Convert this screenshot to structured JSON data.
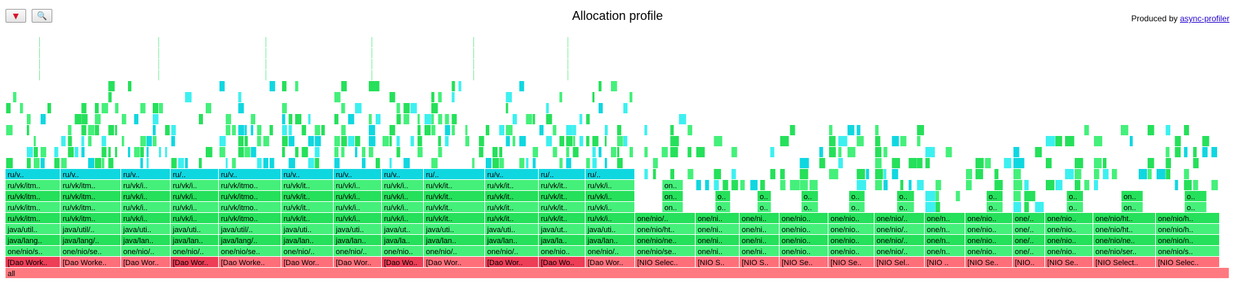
{
  "header": {
    "title": "Allocation profile",
    "produced_label": "Produced by",
    "produced_link": "async-profiler",
    "reverse_icon": "triangle-down-icon",
    "search_icon": "magnifier-icon"
  },
  "colors": {
    "root": "#ff7a80",
    "thread": "#ff6f7a",
    "thread_alt": "#ee3d56",
    "java": "#25e05a",
    "java_alt": "#44f07a",
    "inlined": "#0fd7e0",
    "inlined_alt": "#3df0f0"
  },
  "flame": {
    "root_label": "all",
    "threads": [
      {
        "label": "[Dao Work..",
        "alt": true,
        "frames": [
          "one/nio/s..",
          "java/lang..",
          "java/util..",
          "ru/vk/itm..",
          "ru/vk/itm..",
          "ru/vk/itm..",
          "ru/vk/itm..",
          "ru/v.."
        ]
      },
      {
        "label": "[Dao Worke..",
        "alt": false,
        "frames": [
          "one/nio/se..",
          "java/lang/..",
          "java/util/..",
          "ru/vk/itm..",
          "ru/vk/itm..",
          "ru/vk/itm..",
          "ru/vk/itm..",
          "ru/v.."
        ]
      },
      {
        "label": "[Dao Wor..",
        "alt": false,
        "frames": [
          "one/nio/..",
          "java/lan..",
          "java/uti..",
          "ru/vk/i..",
          "ru/vk/i..",
          "ru/vk/i..",
          "ru/vk/i..",
          "ru/v.."
        ]
      },
      {
        "label": "[Dao Wor..",
        "alt": true,
        "frames": [
          "one/nio/..",
          "java/lan..",
          "java/uti..",
          "ru/vk/i..",
          "ru/vk/i..",
          "ru/vk/i..",
          "ru/vk/i..",
          "ru/.."
        ]
      },
      {
        "label": "[Dao Worke..",
        "alt": false,
        "frames": [
          "one/nio/se..",
          "java/lang/..",
          "java/util/..",
          "ru/vk/itmo..",
          "ru/vk/itmo..",
          "ru/vk/itmo..",
          "ru/vk/itmo..",
          "ru/v.."
        ]
      },
      {
        "label": "[Dao Wor..",
        "alt": false,
        "frames": [
          "one/nio/..",
          "java/lan..",
          "java/uti..",
          "ru/vk/it..",
          "ru/vk/it..",
          "ru/vk/it..",
          "ru/vk/it..",
          "ru/v.."
        ]
      },
      {
        "label": "[Dao Wor..",
        "alt": false,
        "frames": [
          "one/nio/..",
          "java/lan..",
          "java/uti..",
          "ru/vk/i..",
          "ru/vk/i..",
          "ru/vk/i..",
          "ru/vk/i..",
          "ru/v.."
        ]
      },
      {
        "label": "[Dao Wor..",
        "alt": true,
        "frames": [
          "one/nio/..",
          "java/lan..",
          "java/uti..",
          "ru/vk/it..",
          "ru/vk/it..",
          "ru/vk/it..",
          "ru/vk/it..",
          "ru/v.."
        ]
      },
      {
        "label": "[Dao Wor..",
        "alt": false,
        "frames": [
          "one/nio/..",
          "java/lan..",
          "java/uti..",
          "ru/vk/it..",
          "ru/vk/it..",
          "ru/vk/it..",
          "ru/vk/it..",
          "ru/.."
        ]
      },
      {
        "label": "[Dao Wor..",
        "alt": true,
        "frames": [
          "one/nio/..",
          "java/lan..",
          "java/uti..",
          "ru/vk/it..",
          "ru/vk/it..",
          "ru/vk/it..",
          "ru/vk/it..",
          "ru/v.."
        ]
      },
      {
        "label": "[Dao Wo..",
        "alt": true,
        "frames": [
          "one/nio..",
          "java/la..",
          "java/ut..",
          "ru/vk/it..",
          "ru/vk/it..",
          "ru/vk/it..",
          "ru/vk/it..",
          "ru/.."
        ]
      },
      {
        "label": "[Dao Wor..",
        "alt": false,
        "frames": [
          "one/nio/..",
          "java/lan..",
          "java/uti..",
          "ru/vk/i..",
          "ru/vk/i..",
          "ru/vk/i..",
          "ru/vk/i..",
          "ru/.."
        ]
      },
      {
        "label": "[NIO Selec..",
        "alt": false,
        "frames": [
          "one/nio/se..",
          "one/nio/ne..",
          "one/nio/ht..",
          "one/nio/..",
          "on..",
          "one..",
          "one.."
        ]
      },
      {
        "label": "[NIO S..",
        "alt": false,
        "frames": [
          "one/ni..",
          "one/ni..",
          "one/ni..",
          "one/ni..",
          "o..",
          "o.."
        ]
      },
      {
        "label": "[NIO S..",
        "alt": false,
        "frames": [
          "one/ni..",
          "one/ni..",
          "one/ni..",
          "one/ni..",
          "o..",
          "o.."
        ]
      },
      {
        "label": "[NIO Se..",
        "alt": false,
        "frames": [
          "one/nio..",
          "one/nio..",
          "one/nio..",
          "one/nio..",
          "o..",
          "o.."
        ]
      },
      {
        "label": "[NIO Se..",
        "alt": false,
        "frames": [
          "one/nio..",
          "one/nio..",
          "one/nio..",
          "one/nio..",
          "o..",
          "o.."
        ]
      },
      {
        "label": "[NIO Sel..",
        "alt": false,
        "frames": [
          "one/nio/..",
          "one/nio/..",
          "one/nio/..",
          "one/nio/..",
          "o..",
          "o.."
        ]
      },
      {
        "label": "[NIO ..",
        "alt": false,
        "frames": [
          "one/n..",
          "one/n..",
          "one/n..",
          "one/n.."
        ]
      },
      {
        "label": "[NIO Se..",
        "alt": false,
        "frames": [
          "one/nio..",
          "one/nio..",
          "one/nio..",
          "one/nio..",
          "o..",
          "o.."
        ]
      },
      {
        "label": "[NIO ..",
        "alt": false,
        "frames": [
          "one/n..",
          "one/n..",
          "one/n..",
          "one/n.."
        ]
      },
      {
        "label": "[NIO Se..",
        "alt": false,
        "frames": [
          "one/nio..",
          "one/nio..",
          "one/nio..",
          "one/nio..",
          "on..",
          "on.."
        ]
      },
      {
        "label": "[NIO Select..",
        "alt": false,
        "frames": [
          "one/nio/ser..",
          "one/nio/ne..",
          "one/nio/ht..",
          "one/nio/ht..",
          "on..",
          "on.."
        ]
      },
      {
        "label": "[NIO Selec..",
        "alt": false,
        "frames": [
          "one/nio/s..",
          "one/nio/n..",
          "one/nio/h..",
          "one/nio/h..",
          "o..",
          "o.."
        ]
      }
    ]
  }
}
